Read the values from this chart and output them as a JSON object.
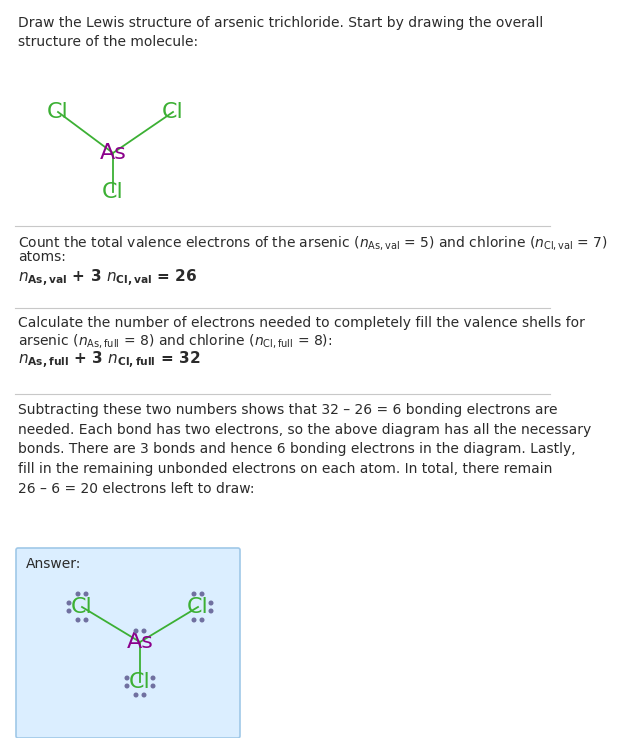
{
  "bg_color": "#ffffff",
  "cl_color": "#3cb034",
  "as_color": "#8b008b",
  "bond_color": "#3cb034",
  "text_color": "#2b2b2b",
  "dot_color": "#7070a0",
  "answer_box_color": "#dbeeff",
  "answer_box_edge": "#a0c8e8",
  "divider_color": "#c8c8c8",
  "title": "Draw the Lewis structure of arsenic trichloride. Start by drawing the overall\nstructure of the molecule:",
  "s1_line1": "Count the total valence electrons of the arsenic (",
  "s1_line2": "atoms:",
  "s2_line1": "Calculate the number of electrons needed to completely fill the valence shells for",
  "s2_line2_a": "arsenic (",
  "s2_line2_b": ") and chlorine (",
  "s2_line2_c": "):",
  "s3_text": "Subtracting these two numbers shows that 32 – 26 = 6 bonding electrons are\nneeded. Each bond has two electrons, so the above diagram has all the necessary\nbonds. There are 3 bonds and hence 6 bonding electrons in the diagram. Lastly,\nfill in the remaining unbonded electrons on each atom. In total, there remain\n26 – 6 = 20 electrons left to draw:",
  "answer_label": "Answer:"
}
